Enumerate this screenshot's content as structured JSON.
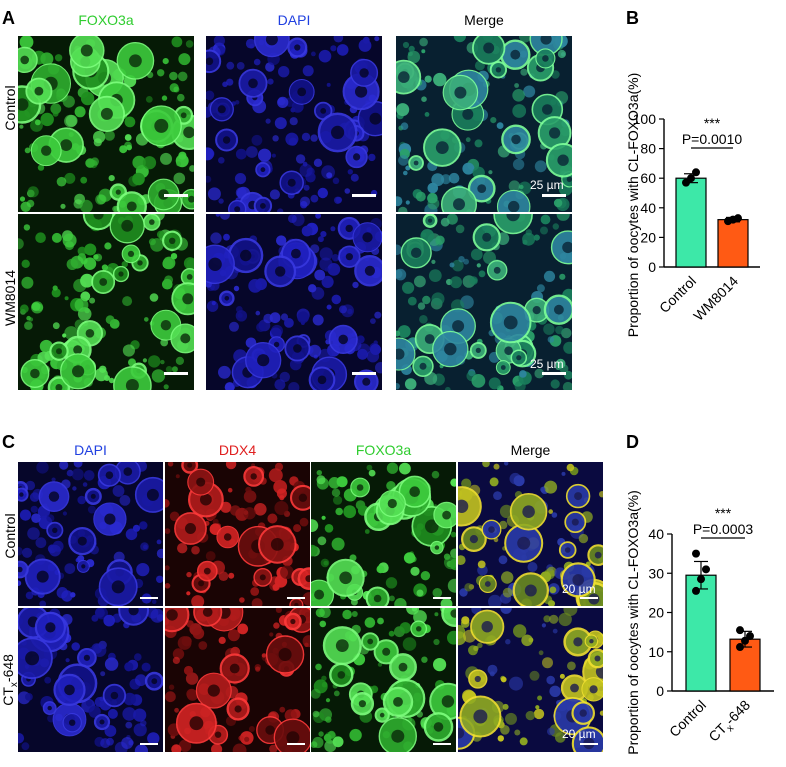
{
  "panels": {
    "A": {
      "letter": "A",
      "columns": [
        "FOXO3a",
        "DAPI",
        "Merge"
      ],
      "column_colors": [
        "#2ecc2e",
        "#2040e0",
        "#000000"
      ],
      "rows": [
        "Control",
        "WM8014"
      ],
      "scale_label": "25 µm"
    },
    "B": {
      "letter": "B"
    },
    "C": {
      "letter": "C",
      "columns": [
        "DAPI",
        "DDX4",
        "FOXO3a",
        "Merge"
      ],
      "column_colors": [
        "#2040e0",
        "#e02020",
        "#2ecc2e",
        "#000000"
      ],
      "rows": [
        "Control",
        "CTx-648"
      ],
      "row_subscript": "x",
      "scale_label": "20 µm"
    },
    "D": {
      "letter": "D"
    }
  },
  "chart_data": [
    {
      "type": "bar",
      "panel": "B",
      "categories": [
        "Control",
        "WM8014"
      ],
      "values": [
        60,
        32
      ],
      "errors": [
        3,
        1.5
      ],
      "points": [
        [
          57,
          60,
          64
        ],
        [
          31,
          32,
          33
        ]
      ],
      "colors": [
        "#3de8a8",
        "#ff5a14"
      ],
      "ylabel": "Proportion of oocytes with CL-FOXO3a(%)",
      "ylim": [
        0,
        100
      ],
      "yticks": [
        0,
        20,
        40,
        60,
        80,
        100
      ],
      "significance": "***",
      "pvalue": "P=0.0010",
      "grid": false
    },
    {
      "type": "bar",
      "panel": "D",
      "categories": [
        "Control",
        "CTx-648"
      ],
      "values": [
        29.5,
        13.2
      ],
      "errors": [
        3.5,
        2.0
      ],
      "points": [
        [
          25.5,
          28.5,
          31,
          35
        ],
        [
          11.2,
          12.8,
          14,
          15.5
        ]
      ],
      "colors": [
        "#3de8a8",
        "#ff5a14"
      ],
      "ylabel": "Proportion of oocytes with CL-FOXO3a(%)",
      "ylim": [
        0,
        40
      ],
      "yticks": [
        0,
        10,
        20,
        30,
        40
      ],
      "significance": "***",
      "pvalue": "P=0.0003",
      "grid": false
    }
  ]
}
